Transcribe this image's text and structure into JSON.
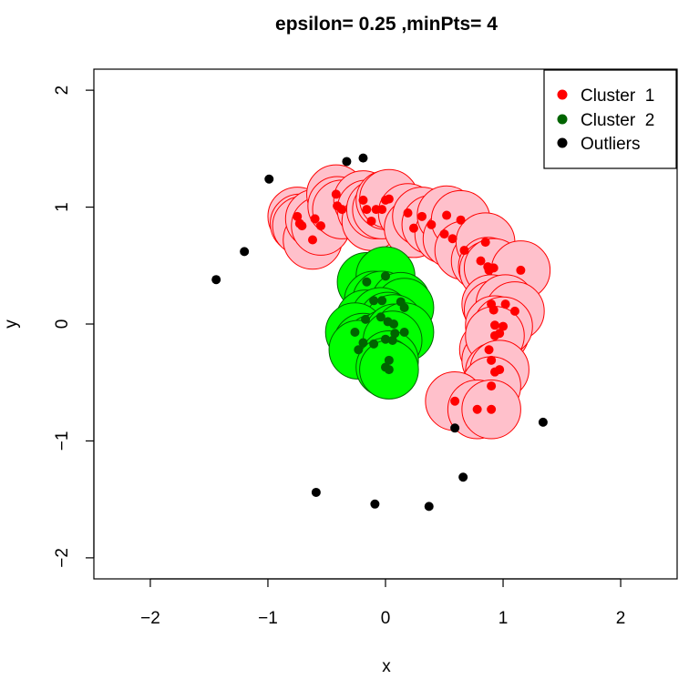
{
  "chart_data": {
    "type": "scatter",
    "title": "epsilon= 0.25 ,minPts= 4",
    "xlabel": "x",
    "ylabel": "y",
    "xlim": [
      -2.48,
      2.48
    ],
    "ylim": [
      -2.18,
      2.18
    ],
    "x_ticks": [
      -2,
      -1,
      0,
      1,
      2
    ],
    "y_ticks": [
      -2,
      -1,
      0,
      1,
      2
    ],
    "x_tick_labels": [
      "−2",
      "−1",
      "0",
      "1",
      "2"
    ],
    "y_tick_labels": [
      "−2",
      "−1",
      "0",
      "1",
      "2"
    ],
    "epsilon": 0.25,
    "legend_position": "top-right",
    "legend": [
      {
        "label": "Cluster  1",
        "color": "#ff0000"
      },
      {
        "label": "Cluster  2",
        "color": "#006400"
      },
      {
        "label": "Outliers",
        "color": "#000000"
      }
    ],
    "series": [
      {
        "name": "Cluster  1",
        "color": "#ff0000",
        "circle_fill": "#ffc0cb",
        "circle_stroke": "#ff0000",
        "points": [
          [
            -0.75,
            0.92
          ],
          [
            -0.73,
            0.86
          ],
          [
            -0.71,
            0.84
          ],
          [
            -0.62,
            0.72
          ],
          [
            -0.6,
            0.9
          ],
          [
            -0.55,
            0.84
          ],
          [
            -0.42,
            1.11
          ],
          [
            -0.41,
            1.01
          ],
          [
            -0.37,
            0.98
          ],
          [
            -0.19,
            1.06
          ],
          [
            -0.16,
            0.98
          ],
          [
            -0.12,
            0.88
          ],
          [
            -0.08,
            0.98
          ],
          [
            -0.03,
            0.98
          ],
          [
            0.0,
            1.06
          ],
          [
            0.03,
            1.07
          ],
          [
            0.19,
            0.95
          ],
          [
            0.24,
            0.82
          ],
          [
            0.31,
            0.92
          ],
          [
            0.39,
            0.85
          ],
          [
            0.5,
            0.77
          ],
          [
            0.52,
            0.93
          ],
          [
            0.57,
            0.73
          ],
          [
            0.64,
            0.89
          ],
          [
            0.67,
            0.63
          ],
          [
            0.81,
            0.54
          ],
          [
            0.85,
            0.7
          ],
          [
            0.87,
            0.49
          ],
          [
            0.88,
            0.46
          ],
          [
            0.92,
            0.48
          ],
          [
            1.15,
            0.46
          ],
          [
            0.9,
            0.17
          ],
          [
            0.92,
            0.12
          ],
          [
            1.02,
            0.17
          ],
          [
            1.1,
            0.11
          ],
          [
            0.93,
            -0.01
          ],
          [
            0.97,
            -0.08
          ],
          [
            1.0,
            -0.02
          ],
          [
            0.88,
            -0.22
          ],
          [
            0.9,
            -0.31
          ],
          [
            0.93,
            -0.1
          ],
          [
            0.93,
            -0.41
          ],
          [
            0.97,
            -0.39
          ],
          [
            0.9,
            -0.53
          ],
          [
            0.59,
            -0.66
          ],
          [
            0.78,
            -0.73
          ],
          [
            0.9,
            -0.73
          ]
        ]
      },
      {
        "name": "Cluster  2",
        "color": "#006400",
        "circle_fill": "#00ff00",
        "circle_stroke": "#006400",
        "points": [
          [
            -0.16,
            0.36
          ],
          [
            0.0,
            0.41
          ],
          [
            -0.1,
            0.2
          ],
          [
            -0.03,
            0.2
          ],
          [
            0.13,
            0.19
          ],
          [
            0.16,
            0.14
          ],
          [
            -0.17,
            0.04
          ],
          [
            -0.04,
            0.06
          ],
          [
            0.02,
            0.02
          ],
          [
            0.07,
            0.0
          ],
          [
            -0.26,
            -0.07
          ],
          [
            -0.19,
            -0.16
          ],
          [
            -0.1,
            -0.17
          ],
          [
            0.0,
            -0.13
          ],
          [
            0.08,
            -0.08
          ],
          [
            0.16,
            -0.07
          ],
          [
            -0.23,
            -0.22
          ],
          [
            0.06,
            -0.14
          ],
          [
            0.03,
            -0.31
          ],
          [
            0.0,
            -0.37
          ],
          [
            0.03,
            -0.39
          ]
        ]
      },
      {
        "name": "Outliers",
        "color": "#000000",
        "points": [
          [
            -1.44,
            0.38
          ],
          [
            -1.2,
            0.62
          ],
          [
            -0.99,
            1.24
          ],
          [
            -0.33,
            1.39
          ],
          [
            -0.19,
            1.42
          ],
          [
            0.59,
            -0.89
          ],
          [
            1.34,
            -0.84
          ],
          [
            0.66,
            -1.31
          ],
          [
            -0.59,
            -1.44
          ],
          [
            -0.09,
            -1.54
          ],
          [
            0.37,
            -1.56
          ]
        ]
      }
    ]
  }
}
